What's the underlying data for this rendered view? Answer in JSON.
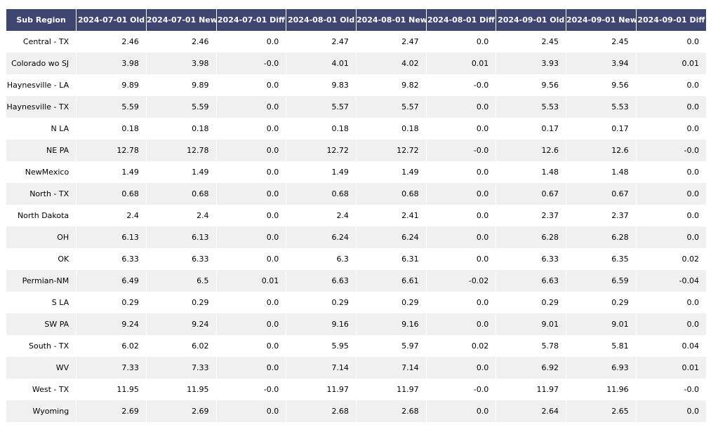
{
  "table": {
    "header": [
      "Sub Region",
      "2024-07-01 Old",
      "2024-07-01 New",
      "2024-07-01 Diff",
      "2024-08-01 Old",
      "2024-08-01 New",
      "2024-08-01 Diff",
      "2024-09-01 Old",
      "2024-09-01 New",
      "2024-09-01 Diff"
    ],
    "rows": [
      [
        "Central - TX",
        "2.46",
        "2.46",
        "0.0",
        "2.47",
        "2.47",
        "0.0",
        "2.45",
        "2.45",
        "0.0"
      ],
      [
        "Colorado wo SJ",
        "3.98",
        "3.98",
        "-0.0",
        "4.01",
        "4.02",
        "0.01",
        "3.93",
        "3.94",
        "0.01"
      ],
      [
        "Haynesville - LA",
        "9.89",
        "9.89",
        "0.0",
        "9.83",
        "9.82",
        "-0.0",
        "9.56",
        "9.56",
        "0.0"
      ],
      [
        "Haynesville - TX",
        "5.59",
        "5.59",
        "0.0",
        "5.57",
        "5.57",
        "0.0",
        "5.53",
        "5.53",
        "0.0"
      ],
      [
        "N LA",
        "0.18",
        "0.18",
        "0.0",
        "0.18",
        "0.18",
        "0.0",
        "0.17",
        "0.17",
        "0.0"
      ],
      [
        "NE PA",
        "12.78",
        "12.78",
        "0.0",
        "12.72",
        "12.72",
        "-0.0",
        "12.6",
        "12.6",
        "-0.0"
      ],
      [
        "NewMexico",
        "1.49",
        "1.49",
        "0.0",
        "1.49",
        "1.49",
        "0.0",
        "1.48",
        "1.48",
        "0.0"
      ],
      [
        "North - TX",
        "0.68",
        "0.68",
        "0.0",
        "0.68",
        "0.68",
        "0.0",
        "0.67",
        "0.67",
        "0.0"
      ],
      [
        "North Dakota",
        "2.4",
        "2.4",
        "0.0",
        "2.4",
        "2.41",
        "0.0",
        "2.37",
        "2.37",
        "0.0"
      ],
      [
        "OH",
        "6.13",
        "6.13",
        "0.0",
        "6.24",
        "6.24",
        "0.0",
        "6.28",
        "6.28",
        "0.0"
      ],
      [
        "OK",
        "6.33",
        "6.33",
        "0.0",
        "6.3",
        "6.31",
        "0.0",
        "6.33",
        "6.35",
        "0.02"
      ],
      [
        "Permian-NM",
        "6.49",
        "6.5",
        "0.01",
        "6.63",
        "6.61",
        "-0.02",
        "6.63",
        "6.59",
        "-0.04"
      ],
      [
        "S LA",
        "0.29",
        "0.29",
        "0.0",
        "0.29",
        "0.29",
        "0.0",
        "0.29",
        "0.29",
        "0.0"
      ],
      [
        "SW PA",
        "9.24",
        "9.24",
        "0.0",
        "9.16",
        "9.16",
        "0.0",
        "9.01",
        "9.01",
        "0.0"
      ],
      [
        "South - TX",
        "6.02",
        "6.02",
        "0.0",
        "5.95",
        "5.97",
        "0.02",
        "5.78",
        "5.81",
        "0.04"
      ],
      [
        "WV",
        "7.33",
        "7.33",
        "0.0",
        "7.14",
        "7.14",
        "0.0",
        "6.92",
        "6.93",
        "0.01"
      ],
      [
        "West - TX",
        "11.95",
        "11.95",
        "-0.0",
        "11.97",
        "11.97",
        "-0.0",
        "11.97",
        "11.96",
        "-0.0"
      ],
      [
        "Wyoming",
        "2.69",
        "2.69",
        "0.0",
        "2.68",
        "2.68",
        "0.0",
        "2.64",
        "2.65",
        "0.0"
      ]
    ]
  }
}
